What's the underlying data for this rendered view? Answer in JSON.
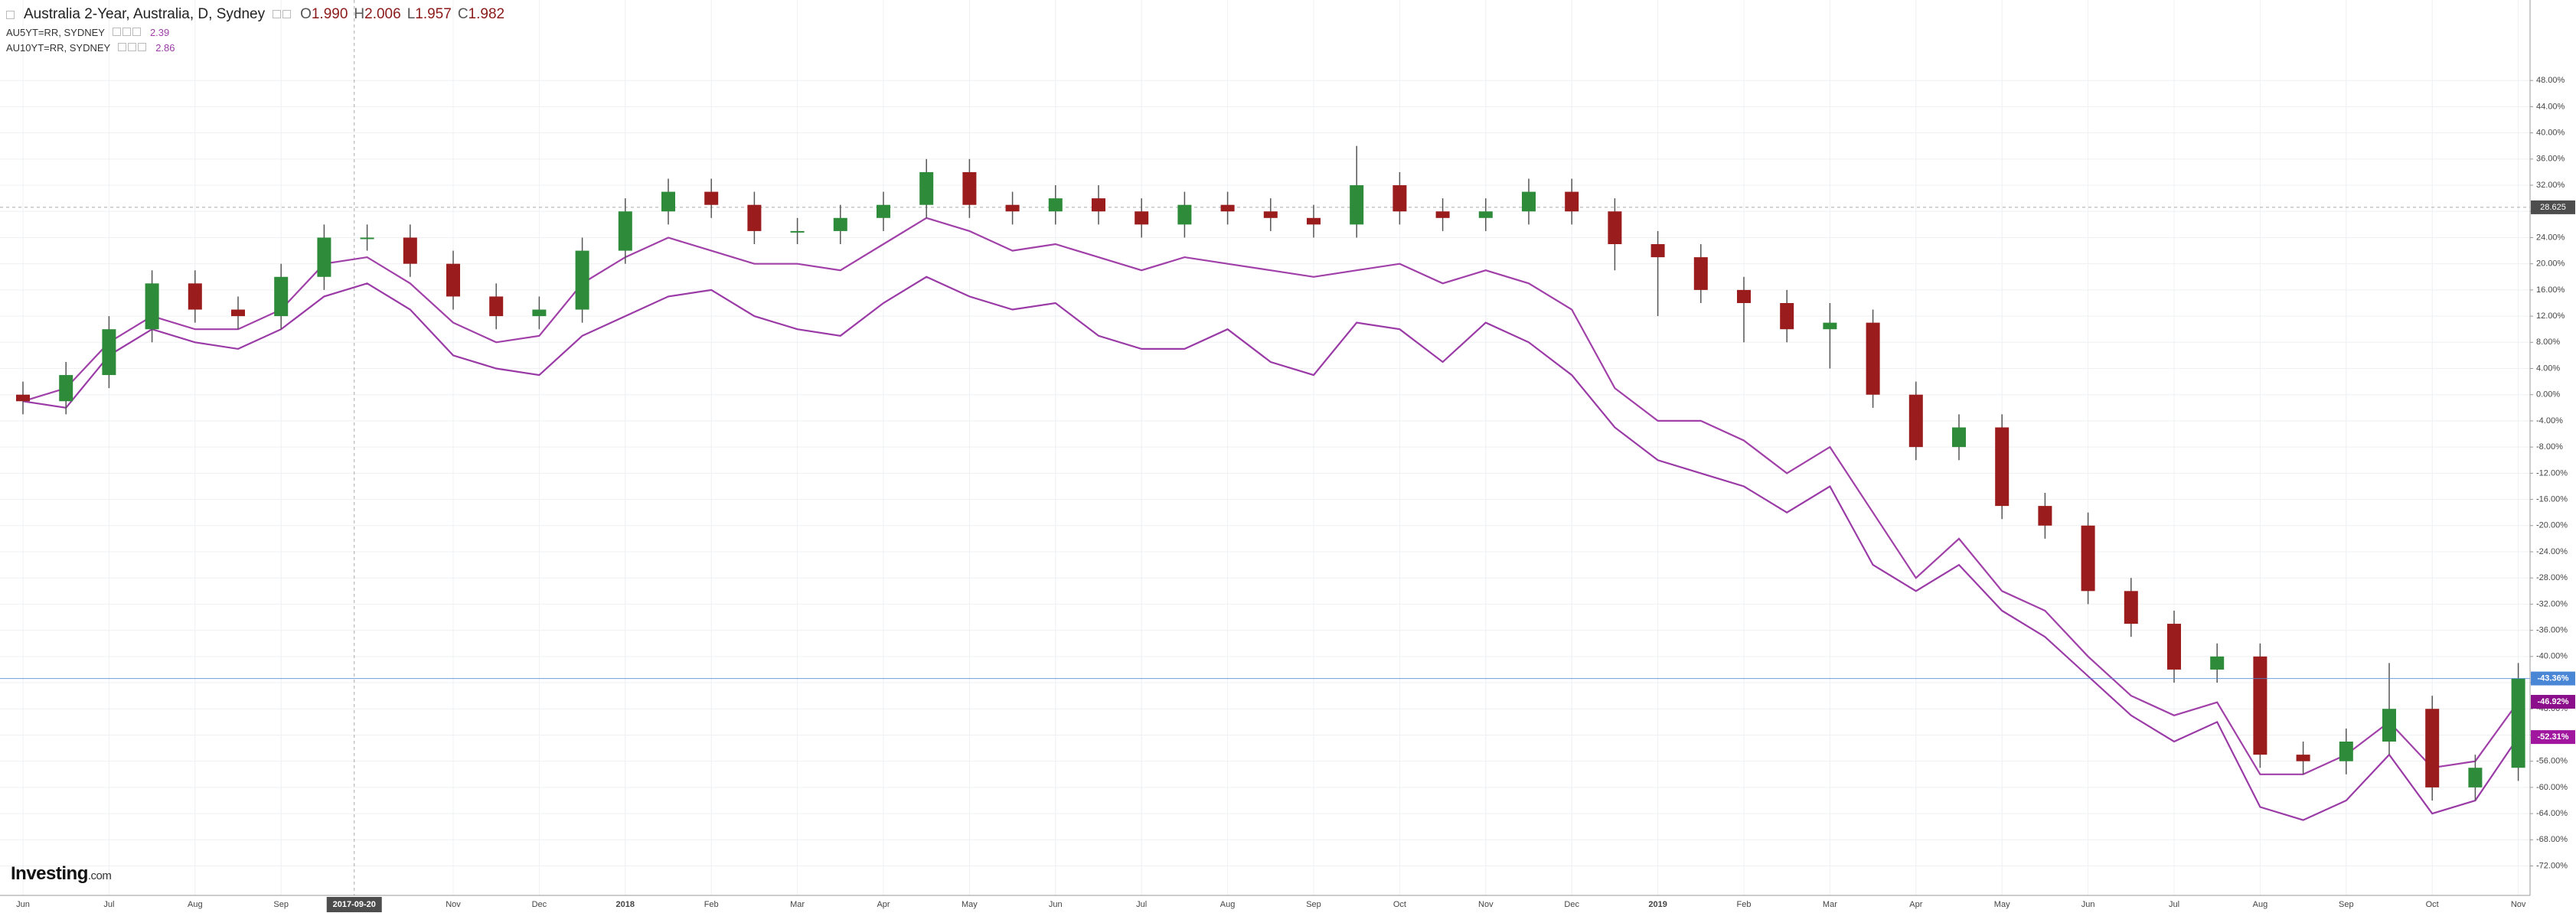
{
  "chart_data": {
    "type": "candlestick",
    "title": "Australia 2-Year, Australia, D, Sydney",
    "quote": [
      {
        "name": "O",
        "value": 1.99,
        "label": "1.990"
      },
      {
        "name": "H",
        "value": 2.006,
        "label": "2.006"
      },
      {
        "name": "L",
        "value": 1.957,
        "label": "1.957"
      },
      {
        "name": "C",
        "value": 1.982,
        "label": "1.982"
      }
    ],
    "categories": [
      "Jun",
      null,
      "Jul",
      null,
      "Aug",
      null,
      "Sep",
      null,
      null,
      null,
      "Nov",
      null,
      "Dec",
      null,
      "2018",
      null,
      "Feb",
      null,
      "Mar",
      null,
      "Apr",
      null,
      "May",
      null,
      "Jun",
      null,
      "Jul",
      null,
      "Aug",
      null,
      "Sep",
      null,
      "Oct",
      null,
      "Nov",
      null,
      "Dec",
      null,
      "2019",
      null,
      "Feb",
      null,
      "Mar",
      null,
      "Apr",
      null,
      "May",
      null,
      "Jun",
      null,
      "Jul",
      null,
      "Aug",
      null,
      "Sep",
      null,
      "Oct",
      null,
      "Nov"
    ],
    "open": [
      0,
      -1,
      3,
      10,
      17,
      13,
      12,
      18,
      24,
      24,
      20,
      15,
      12,
      13,
      22,
      28,
      31,
      29,
      25,
      25,
      27,
      29,
      34,
      29,
      28,
      30,
      28,
      26,
      29,
      28,
      27,
      26,
      32,
      28,
      27,
      28,
      31,
      28,
      23,
      21,
      16,
      14,
      10,
      11,
      0,
      -8,
      -5,
      -17,
      -20,
      -30,
      -35,
      -42,
      -40,
      -55,
      -56,
      -53,
      -48,
      -60,
      -57
    ],
    "high": [
      2,
      5,
      12,
      19,
      19,
      15,
      20,
      26,
      26,
      26,
      22,
      17,
      15,
      24,
      30,
      33,
      33,
      31,
      27,
      29,
      31,
      36,
      36,
      31,
      32,
      32,
      30,
      31,
      31,
      30,
      29,
      38,
      34,
      30,
      30,
      33,
      33,
      30,
      25,
      23,
      18,
      16,
      14,
      13,
      2,
      -3,
      -3,
      -15,
      -18,
      -28,
      -33,
      -38,
      -38,
      -53,
      -51,
      -41,
      -46,
      -55,
      -41
    ],
    "low": [
      -3,
      -3,
      1,
      8,
      11,
      10,
      10,
      16,
      22,
      18,
      13,
      10,
      10,
      11,
      20,
      26,
      27,
      23,
      23,
      23,
      25,
      27,
      27,
      26,
      26,
      26,
      24,
      24,
      26,
      25,
      24,
      24,
      26,
      25,
      25,
      26,
      26,
      19,
      12,
      14,
      8,
      8,
      4,
      -2,
      -10,
      -10,
      -19,
      -22,
      -32,
      -37,
      -44,
      -44,
      -57,
      -58,
      -58,
      -55,
      -62,
      -62,
      -59
    ],
    "close": [
      -1,
      3,
      10,
      17,
      13,
      12,
      18,
      24,
      24,
      20,
      15,
      12,
      13,
      22,
      28,
      31,
      29,
      25,
      25,
      27,
      29,
      34,
      29,
      28,
      30,
      28,
      26,
      29,
      28,
      27,
      26,
      32,
      28,
      27,
      28,
      31,
      28,
      23,
      21,
      16,
      14,
      10,
      11,
      0,
      -8,
      -5,
      -17,
      -20,
      -30,
      -35,
      -42,
      -40,
      -55,
      -56,
      -53,
      -48,
      -60,
      -57,
      -43.36
    ],
    "up_color": "#2e8b3a",
    "down_color": "#9b1c1c",
    "end_label": "-43.36%",
    "end_color": "#4a86d6",
    "series": [
      {
        "name": "AU5YT=RR, SYDNEY",
        "quote": 2.39,
        "color": "#a040a8",
        "end_label": "-46.92%",
        "label_color": "#8b0f8b",
        "values": [
          -1,
          1,
          8,
          12,
          10,
          10,
          13,
          20,
          21,
          17,
          11,
          8,
          9,
          17,
          21,
          24,
          22,
          20,
          20,
          19,
          23,
          27,
          25,
          22,
          23,
          21,
          19,
          21,
          20,
          19,
          18,
          19,
          20,
          17,
          19,
          17,
          13,
          1,
          -4,
          -4,
          -7,
          -12,
          -8,
          -18,
          -28,
          -22,
          -30,
          -33,
          -40,
          -46,
          -49,
          -47,
          -58,
          -58,
          -55,
          -50,
          -57,
          -56,
          -46.92
        ]
      },
      {
        "name": "AU10YT=RR, SYDNEY",
        "quote": 2.86,
        "color": "#9a3aa6",
        "end_label": "-52.31%",
        "label_color": "#a0169f",
        "values": [
          -1,
          -2,
          6,
          10,
          8,
          7,
          10,
          15,
          17,
          13,
          6,
          4,
          3,
          9,
          12,
          15,
          16,
          12,
          10,
          9,
          14,
          18,
          15,
          13,
          14,
          9,
          7,
          7,
          10,
          5,
          3,
          11,
          10,
          5,
          11,
          8,
          3,
          -5,
          -10,
          -12,
          -14,
          -18,
          -14,
          -26,
          -30,
          -26,
          -33,
          -37,
          -43,
          -49,
          -53,
          -50,
          -63,
          -65,
          -62,
          -55,
          -64,
          -62,
          -52.31
        ]
      }
    ],
    "ylim": [
      -76.5,
      60.3
    ],
    "yticks": [
      {
        "value": 48,
        "label": "48.00%"
      },
      {
        "value": 44,
        "label": "44.00%"
      },
      {
        "value": 40,
        "label": "40.00%"
      },
      {
        "value": 36,
        "label": "36.00%"
      },
      {
        "value": 32,
        "label": "32.00%"
      },
      {
        "value": 28,
        "label": "28.00%"
      },
      {
        "value": 24,
        "label": "24.00%"
      },
      {
        "value": 20,
        "label": "20.00%"
      },
      {
        "value": 16,
        "label": "16.00%"
      },
      {
        "value": 12,
        "label": "12.00%"
      },
      {
        "value": 8,
        "label": "8.00%"
      },
      {
        "value": 4,
        "label": "4.00%"
      },
      {
        "value": 0,
        "label": "0.00%"
      },
      {
        "value": -4,
        "label": "-4.00%"
      },
      {
        "value": -8,
        "label": "-8.00%"
      },
      {
        "value": -12,
        "label": "-12.00%"
      },
      {
        "value": -16,
        "label": "-16.00%"
      },
      {
        "value": -20,
        "label": "-20.00%"
      },
      {
        "value": -24,
        "label": "-24.00%"
      },
      {
        "value": -28,
        "label": "-28.00%"
      },
      {
        "value": -32,
        "label": "-32.00%"
      },
      {
        "value": -36,
        "label": "-36.00%"
      },
      {
        "value": -40,
        "label": "-40.00%"
      },
      {
        "value": -44,
        "label": "-44.00%"
      },
      {
        "value": -48,
        "label": "-48.00%"
      },
      {
        "value": -52,
        "label": "-52.00%"
      },
      {
        "value": -56,
        "label": "-56.00%"
      },
      {
        "value": -60,
        "label": "-60.00%"
      },
      {
        "value": -64,
        "label": "-64.00%"
      },
      {
        "value": -68,
        "label": "-68.00%"
      },
      {
        "value": -72,
        "label": "-72.00%"
      }
    ],
    "grid": true,
    "crosshair": {
      "x_label": "2017-09-20",
      "y": 28.625
    },
    "brand": {
      "name": "Investing",
      "suffix": ".com"
    }
  }
}
